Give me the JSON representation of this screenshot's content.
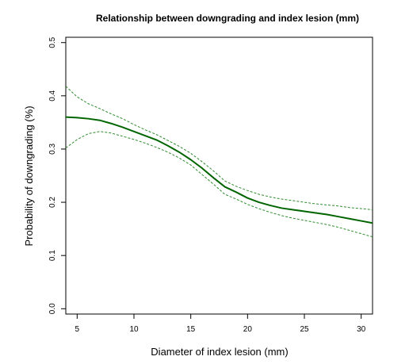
{
  "chart_data": {
    "type": "line",
    "title": "Relationship between downgrading and index lesion (mm)",
    "xlabel": "Diameter of index lesion (mm)",
    "ylabel": "Probability of downgrading (%)",
    "xlim": [
      4,
      31
    ],
    "ylim": [
      -0.01,
      0.51
    ],
    "xticks": [
      5,
      10,
      15,
      20,
      25,
      30
    ],
    "xtick_labels": [
      "5",
      "10",
      "15",
      "20",
      "25",
      "30"
    ],
    "yticks": [
      0.0,
      0.1,
      0.2,
      0.3,
      0.4,
      0.5
    ],
    "ytick_labels": [
      "0.0",
      "0.1",
      "0.2",
      "0.3",
      "0.4",
      "0.5"
    ],
    "grid": false,
    "legend": "none",
    "series": [
      {
        "role": "estimate",
        "style": "solid",
        "color": "#006400",
        "x": [
          4,
          5,
          6,
          7,
          8,
          9,
          10,
          11,
          12,
          13,
          14,
          15,
          16,
          17,
          18,
          19,
          20,
          21,
          22,
          23,
          24,
          25,
          26,
          27,
          28,
          29,
          30,
          31
        ],
        "y": [
          0.36,
          0.359,
          0.357,
          0.354,
          0.348,
          0.341,
          0.333,
          0.325,
          0.317,
          0.306,
          0.294,
          0.28,
          0.264,
          0.246,
          0.229,
          0.219,
          0.208,
          0.2,
          0.194,
          0.189,
          0.186,
          0.183,
          0.18,
          0.177,
          0.173,
          0.169,
          0.165,
          0.161
        ]
      },
      {
        "role": "upper-bound",
        "style": "dashed",
        "color": "#2e8b2e",
        "x": [
          4,
          5,
          6,
          7,
          8,
          9,
          10,
          11,
          12,
          13,
          14,
          15,
          16,
          17,
          18,
          19,
          20,
          21,
          22,
          23,
          24,
          25,
          26,
          27,
          28,
          29,
          30,
          31
        ],
        "y": [
          0.418,
          0.398,
          0.385,
          0.376,
          0.366,
          0.357,
          0.346,
          0.336,
          0.327,
          0.316,
          0.305,
          0.292,
          0.276,
          0.259,
          0.24,
          0.23,
          0.222,
          0.215,
          0.21,
          0.206,
          0.203,
          0.2,
          0.197,
          0.195,
          0.193,
          0.19,
          0.188,
          0.186
        ]
      },
      {
        "role": "lower-bound",
        "style": "dashed",
        "color": "#2e8b2e",
        "x": [
          4,
          5,
          6,
          7,
          8,
          9,
          10,
          11,
          12,
          13,
          14,
          15,
          16,
          17,
          18,
          19,
          20,
          21,
          22,
          23,
          24,
          25,
          26,
          27,
          28,
          29,
          30,
          31
        ],
        "y": [
          0.302,
          0.318,
          0.329,
          0.333,
          0.33,
          0.324,
          0.318,
          0.311,
          0.303,
          0.294,
          0.283,
          0.27,
          0.252,
          0.234,
          0.215,
          0.206,
          0.196,
          0.188,
          0.181,
          0.175,
          0.17,
          0.166,
          0.162,
          0.158,
          0.153,
          0.147,
          0.141,
          0.135
        ]
      }
    ]
  }
}
